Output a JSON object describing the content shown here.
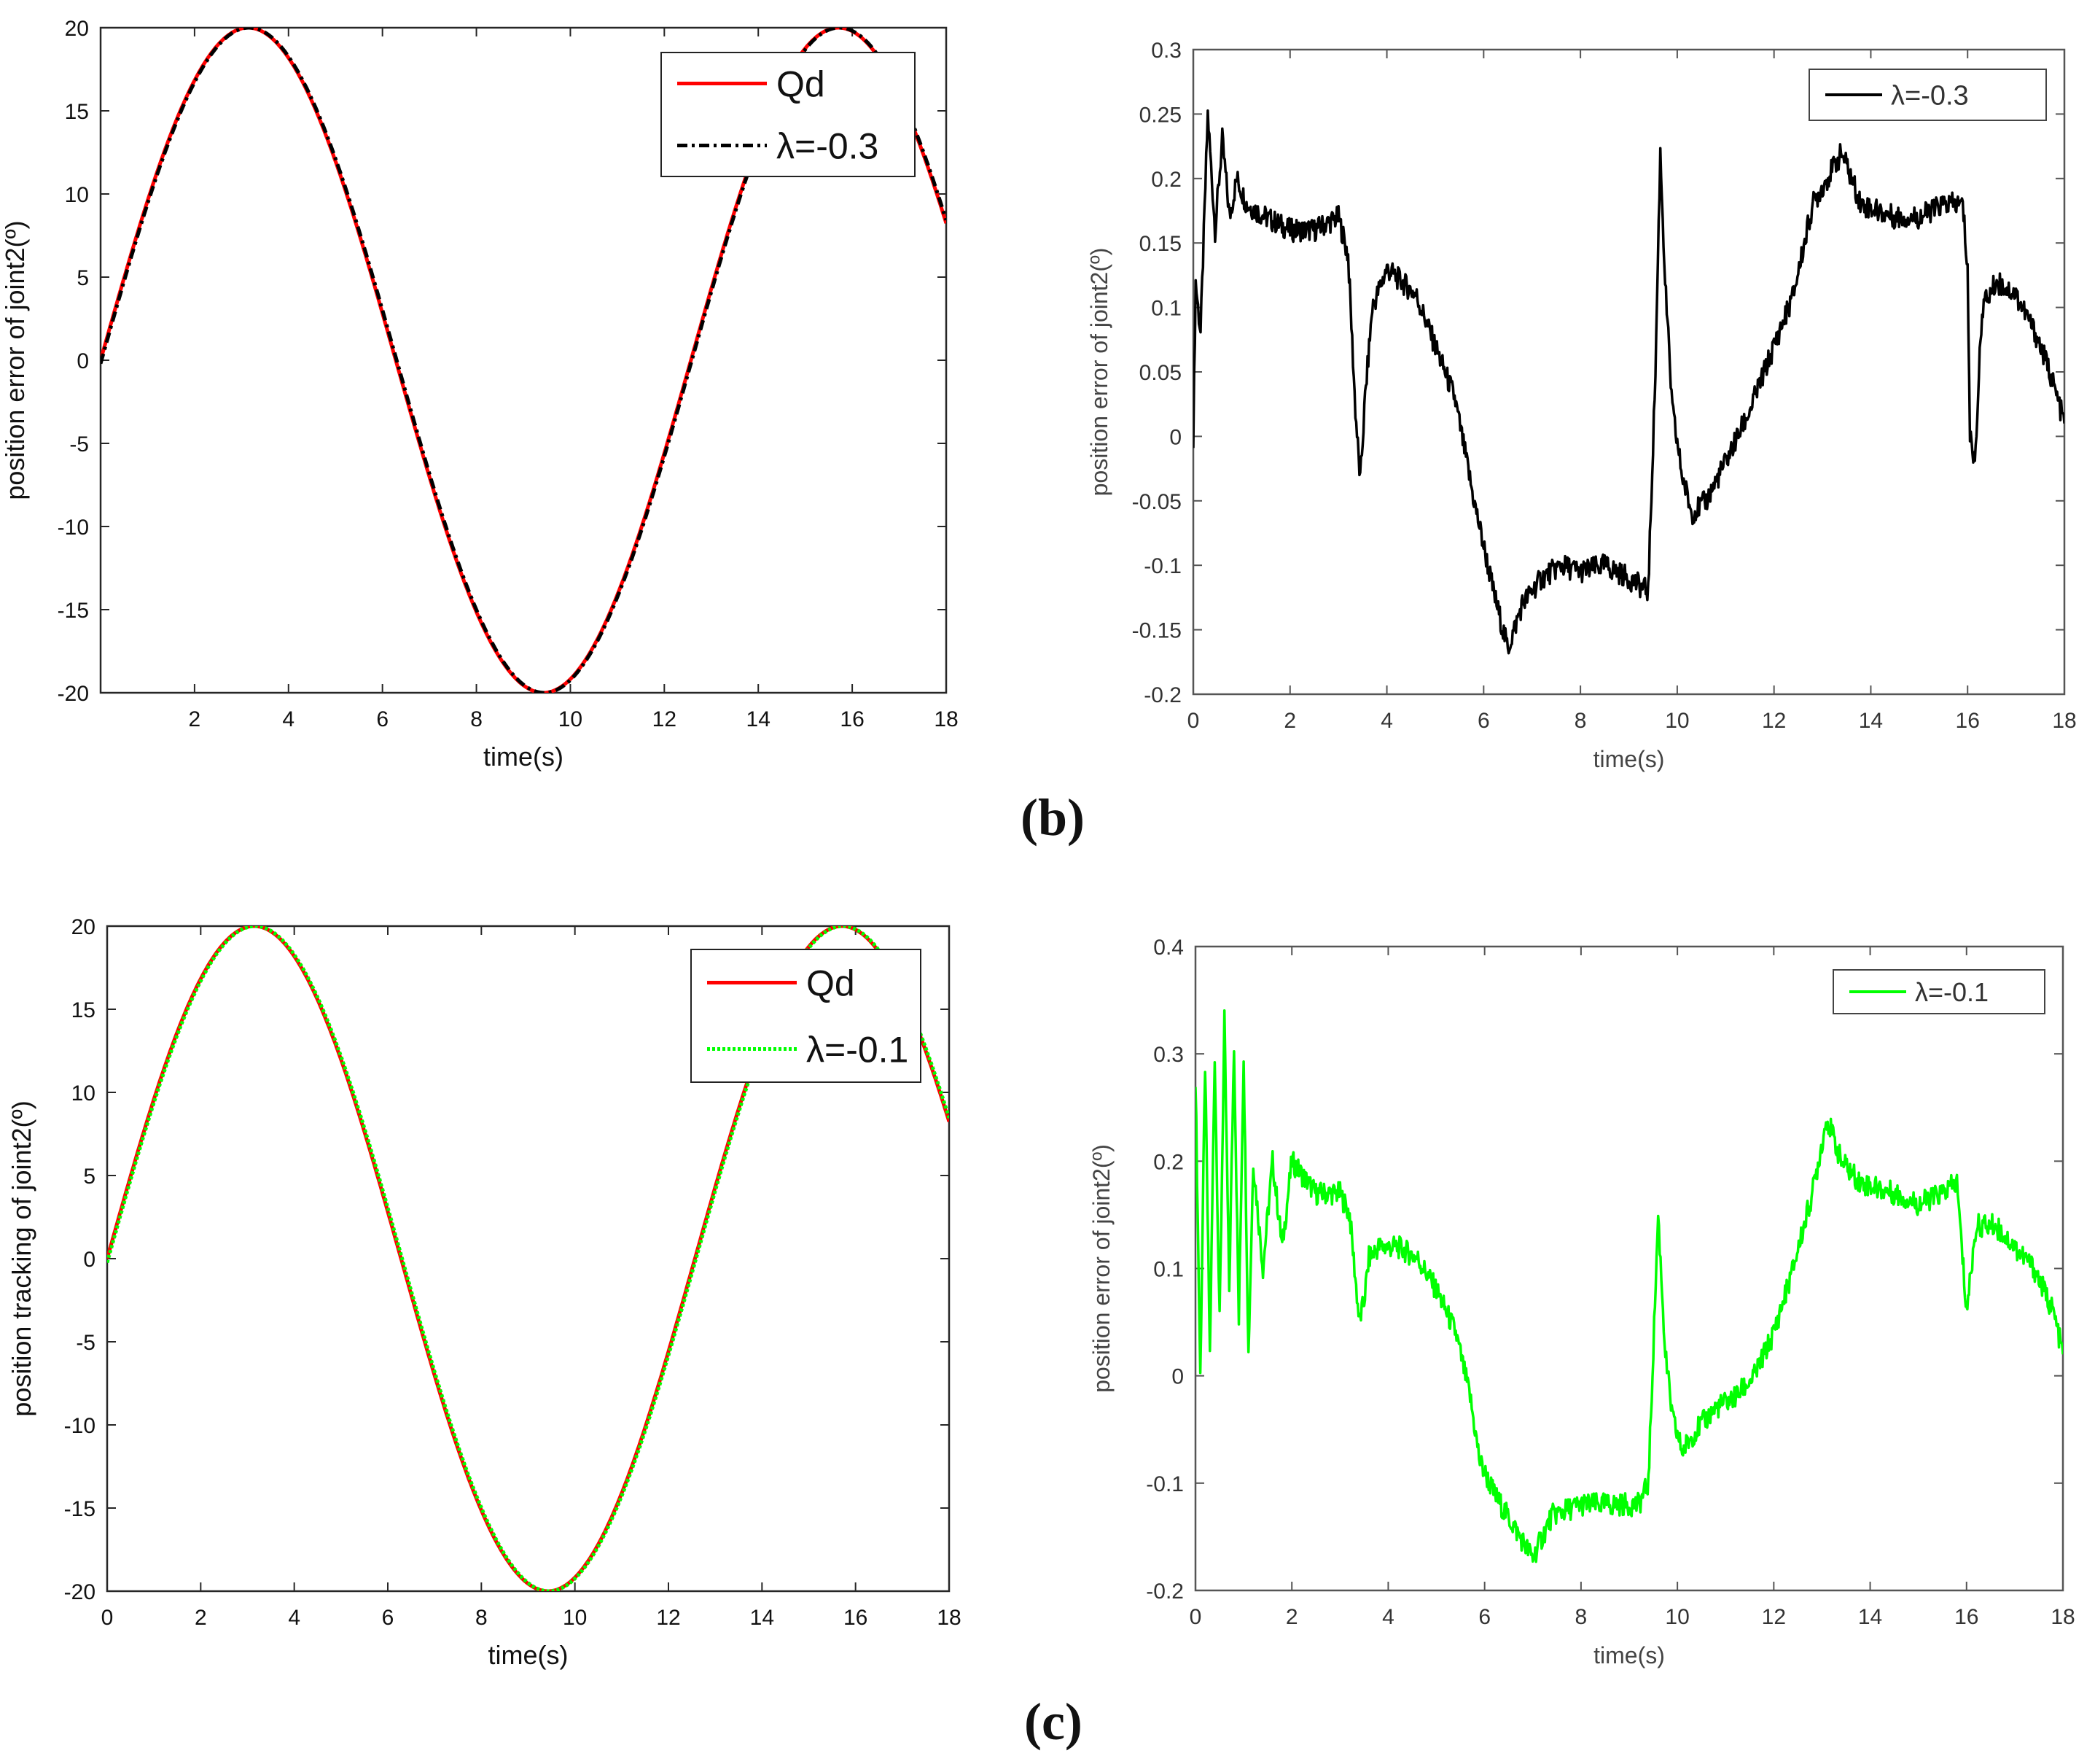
{
  "panel_labels": [
    "(b)",
    "(c)"
  ],
  "colors": {
    "red": "#ff0000",
    "black": "#000000",
    "green": "#00ff00",
    "axis": "#262626",
    "error_axis": "#555555"
  },
  "chart_data": [
    {
      "id": "b_tracking",
      "type": "line",
      "title": "",
      "xlabel": "time(s)",
      "ylabel": "position error of joint2(º)",
      "xlim": [
        0,
        18
      ],
      "ylim": [
        -20,
        20
      ],
      "xticks": [
        2,
        4,
        6,
        8,
        10,
        12,
        14,
        16,
        18
      ],
      "yticks": [
        -20,
        -15,
        -10,
        -5,
        0,
        5,
        10,
        15,
        20
      ],
      "legend": [
        "Qd",
        "λ=-0.3"
      ],
      "legend_position": "top-right",
      "series": [
        {
          "name": "Qd",
          "color": "#ff0000",
          "style": "solid",
          "function": "20*sin(0.5*t)",
          "t_range": [
            0,
            18
          ]
        },
        {
          "name": "λ=-0.3",
          "color": "#000000",
          "style": "dashdot",
          "function": "20*sin(0.5*t - 0.01)",
          "t_range": [
            0,
            18
          ]
        }
      ]
    },
    {
      "id": "b_error",
      "type": "line",
      "title": "",
      "xlabel": "time(s)",
      "ylabel": "position error of joint2(º)",
      "xlim": [
        0,
        18
      ],
      "ylim": [
        -0.2,
        0.3
      ],
      "xticks": [
        0,
        2,
        4,
        6,
        8,
        10,
        12,
        14,
        16,
        18
      ],
      "yticks": [
        -0.2,
        -0.15,
        -0.1,
        -0.05,
        0,
        0.05,
        0.1,
        0.15,
        0.2,
        0.25,
        0.3
      ],
      "legend": [
        "λ=-0.3"
      ],
      "legend_position": "top-right",
      "series": [
        {
          "name": "λ=-0.3",
          "color": "#000000",
          "x": [
            0,
            0.05,
            0.15,
            0.3,
            0.45,
            0.6,
            0.75,
            0.9,
            1.1,
            1.5,
            2,
            2.5,
            3,
            3.2,
            3.35,
            3.45,
            3.55,
            3.7,
            4,
            4.3,
            4.6,
            5,
            5.4,
            5.8,
            6.2,
            6.5,
            6.8,
            7.2,
            7.6,
            8,
            8.5,
            9,
            9.4,
            9.55,
            9.65,
            9.75,
            9.9,
            10.1,
            10.3,
            10.6,
            11,
            11.5,
            12,
            12.4,
            12.8,
            13.1,
            13.4,
            13.8,
            14.5,
            15,
            15.5,
            15.9,
            16,
            16.05,
            16.15,
            16.3,
            16.6,
            17,
            17.4,
            17.7,
            18
          ],
          "y": [
            0.0,
            0.12,
            0.08,
            0.25,
            0.16,
            0.23,
            0.17,
            0.2,
            0.18,
            0.17,
            0.16,
            0.16,
            0.17,
            0.14,
            0.02,
            -0.035,
            0.03,
            0.1,
            0.13,
            0.12,
            0.11,
            0.07,
            0.03,
            -0.05,
            -0.12,
            -0.165,
            -0.13,
            -0.11,
            -0.1,
            -0.105,
            -0.1,
            -0.11,
            -0.12,
            0.05,
            0.22,
            0.12,
            0.02,
            -0.03,
            -0.06,
            -0.05,
            -0.02,
            0.02,
            0.07,
            0.11,
            0.18,
            0.2,
            0.22,
            0.18,
            0.17,
            0.17,
            0.18,
            0.18,
            0.13,
            0.0,
            -0.02,
            0.1,
            0.12,
            0.11,
            0.08,
            0.05,
            0.01
          ]
        }
      ]
    },
    {
      "id": "c_tracking",
      "type": "line",
      "title": "",
      "xlabel": "time(s)",
      "ylabel": "position tracking of joint2(º)",
      "xlim": [
        0,
        18
      ],
      "ylim": [
        -20,
        20
      ],
      "xticks": [
        0,
        2,
        4,
        6,
        8,
        10,
        12,
        14,
        16,
        18
      ],
      "yticks": [
        -20,
        -15,
        -10,
        -5,
        0,
        5,
        10,
        15,
        20
      ],
      "legend": [
        "Qd",
        "λ=-0.1"
      ],
      "legend_position": "top-right",
      "series": [
        {
          "name": "Qd",
          "color": "#ff0000",
          "style": "solid",
          "function": "20*sin(0.5*t)",
          "t_range": [
            0,
            18
          ]
        },
        {
          "name": "λ=-0.1",
          "color": "#00ff00",
          "style": "dotted",
          "function": "20*sin(0.5*t - 0.012)",
          "t_range": [
            0,
            18
          ]
        }
      ]
    },
    {
      "id": "c_error",
      "type": "line",
      "title": "",
      "xlabel": "time(s)",
      "ylabel": "position error of joint2(º)",
      "xlim": [
        0,
        18
      ],
      "ylim": [
        -0.2,
        0.4
      ],
      "xticks": [
        0,
        2,
        4,
        6,
        8,
        10,
        12,
        14,
        16,
        18
      ],
      "yticks": [
        -0.2,
        -0.1,
        0,
        0.1,
        0.2,
        0.3,
        0.4
      ],
      "legend": [
        "λ=-0.1"
      ],
      "legend_position": "top-right",
      "series": [
        {
          "name": "λ=-0.1",
          "color": "#00ff00",
          "x": [
            0,
            0.1,
            0.2,
            0.3,
            0.4,
            0.5,
            0.6,
            0.7,
            0.8,
            0.9,
            1.0,
            1.1,
            1.2,
            1.4,
            1.6,
            1.8,
            2.0,
            2.5,
            3.0,
            3.2,
            3.4,
            3.5,
            3.6,
            3.8,
            4.2,
            4.6,
            5.0,
            5.4,
            5.7,
            5.9,
            6.2,
            6.6,
            7.0,
            7.4,
            8.0,
            8.6,
            9.2,
            9.4,
            9.6,
            9.75,
            9.9,
            10.1,
            10.4,
            10.8,
            11.2,
            11.6,
            12.0,
            12.4,
            12.8,
            13.1,
            13.4,
            13.8,
            14.5,
            15.0,
            15.5,
            15.8,
            16.0,
            16.2,
            16.6,
            17.0,
            17.4,
            17.8,
            18.0
          ],
          "y": [
            0.28,
            0.0,
            0.29,
            0.02,
            0.3,
            0.05,
            0.33,
            0.08,
            0.31,
            0.05,
            0.3,
            0.02,
            0.2,
            0.1,
            0.2,
            0.12,
            0.2,
            0.17,
            0.17,
            0.15,
            0.05,
            0.07,
            0.11,
            0.12,
            0.12,
            0.11,
            0.08,
            0.04,
            -0.02,
            -0.08,
            -0.11,
            -0.14,
            -0.17,
            -0.13,
            -0.12,
            -0.12,
            -0.12,
            -0.1,
            0.15,
            0.02,
            -0.04,
            -0.07,
            -0.05,
            -0.03,
            -0.02,
            0.0,
            0.04,
            0.1,
            0.17,
            0.24,
            0.2,
            0.18,
            0.17,
            0.16,
            0.17,
            0.18,
            0.06,
            0.14,
            0.14,
            0.12,
            0.1,
            0.06,
            0.02
          ]
        }
      ]
    }
  ]
}
